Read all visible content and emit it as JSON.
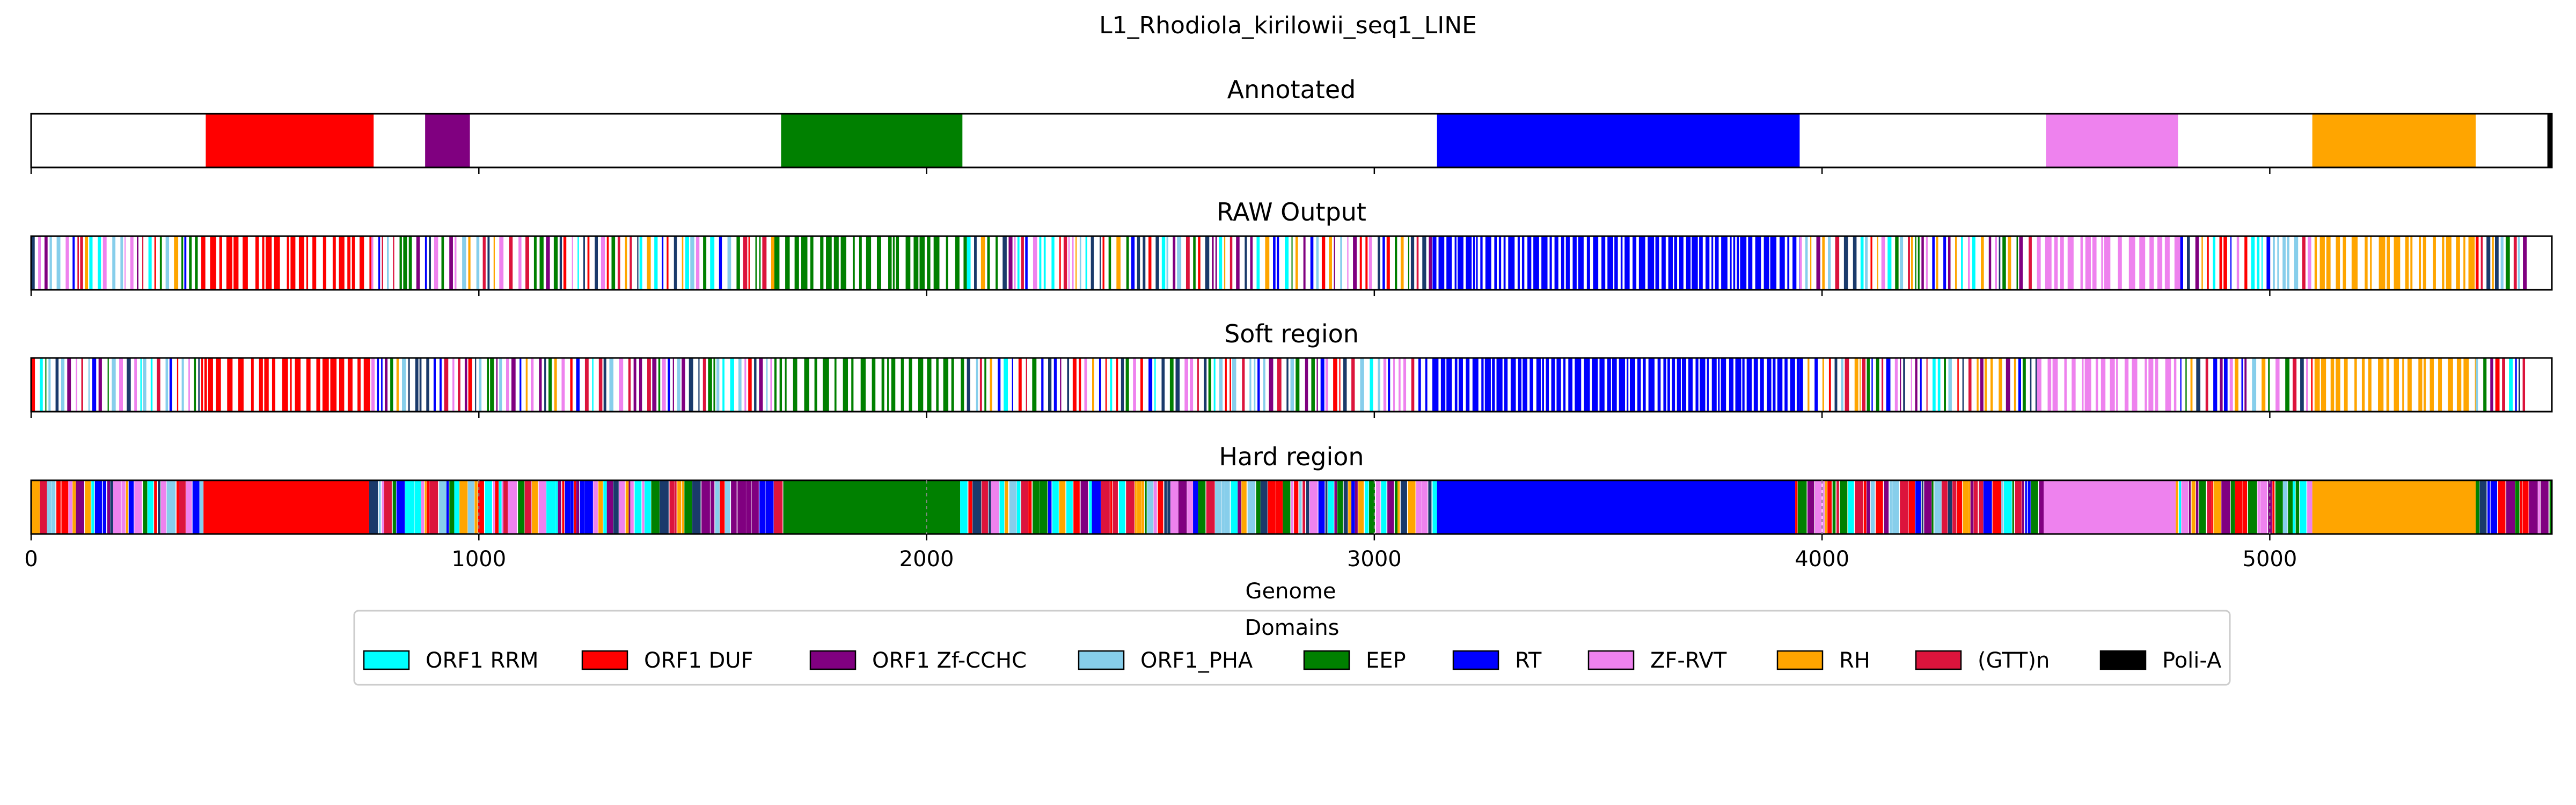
{
  "chart_data": {
    "type": "genome_track",
    "title": "L1_Rhodiola_kirilowii_seq1_LINE",
    "xlabel": "Genome",
    "xlim": [
      0,
      5630
    ],
    "xticks": [
      0,
      1000,
      2000,
      3000,
      4000,
      5000
    ],
    "xtick_labels": [
      "0",
      "1000",
      "2000",
      "3000",
      "4000",
      "5000"
    ],
    "domain_colors": {
      "ORF1 RRM": "#00ffff",
      "ORF1 DUF": "#ff0000",
      "ORF1 Zf-CCHC": "#800080",
      "ORF1_PHA": "#87ceeb",
      "EEP": "#008000",
      "RT": "#0000ff",
      "ZF-RVT": "#ee82ee",
      "RH": "#ffa500",
      "(GTT)n": "#dc143c",
      "Poli-A": "#000000"
    },
    "tracks": [
      {
        "title": "Annotated",
        "segments": [
          {
            "domain": "ORF1 DUF",
            "start": 390,
            "end": 765
          },
          {
            "domain": "ORF1 Zf-CCHC",
            "start": 880,
            "end": 980
          },
          {
            "domain": "EEP",
            "start": 1675,
            "end": 2080
          },
          {
            "domain": "RT",
            "start": 3140,
            "end": 3950
          },
          {
            "domain": "ZF-RVT",
            "start": 4500,
            "end": 4795
          },
          {
            "domain": "RH",
            "start": 5095,
            "end": 5460
          },
          {
            "domain": "Poli-A",
            "start": 5620,
            "end": 5630
          }
        ]
      },
      {
        "title": "RAW Output",
        "segments": [
          {
            "domain": "mixed",
            "start": 0,
            "end": 380
          },
          {
            "domain": "ORF1 DUF",
            "start": 380,
            "end": 760
          },
          {
            "domain": "mixed",
            "start": 760,
            "end": 1660
          },
          {
            "domain": "EEP",
            "start": 1660,
            "end": 2090
          },
          {
            "domain": "mixed",
            "start": 2090,
            "end": 3130
          },
          {
            "domain": "RT",
            "start": 3130,
            "end": 3950
          },
          {
            "domain": "mixed",
            "start": 3950,
            "end": 4480
          },
          {
            "domain": "ZF-RVT",
            "start": 4480,
            "end": 4800
          },
          {
            "domain": "mixed",
            "start": 4800,
            "end": 5100
          },
          {
            "domain": "RH",
            "start": 5100,
            "end": 5460
          },
          {
            "domain": "mixed",
            "start": 5460,
            "end": 5580
          }
        ]
      },
      {
        "title": "Soft region",
        "segments": [
          {
            "domain": "mixed",
            "start": 0,
            "end": 380
          },
          {
            "domain": "ORF1 DUF",
            "start": 380,
            "end": 760
          },
          {
            "domain": "mixed",
            "start": 760,
            "end": 1660
          },
          {
            "domain": "EEP",
            "start": 1660,
            "end": 2090
          },
          {
            "domain": "mixed",
            "start": 2090,
            "end": 3130
          },
          {
            "domain": "RT",
            "start": 3130,
            "end": 3950
          },
          {
            "domain": "mixed",
            "start": 3950,
            "end": 4480
          },
          {
            "domain": "ZF-RVT",
            "start": 4480,
            "end": 4800
          },
          {
            "domain": "mixed",
            "start": 4800,
            "end": 5100
          },
          {
            "domain": "RH",
            "start": 5100,
            "end": 5460
          },
          {
            "domain": "mixed",
            "start": 5460,
            "end": 5580
          }
        ]
      },
      {
        "title": "Hard region",
        "segments": [
          {
            "domain": "mixed",
            "start": 0,
            "end": 385
          },
          {
            "domain": "ORF1 DUF",
            "start": 385,
            "end": 755
          },
          {
            "domain": "mixed",
            "start": 755,
            "end": 1680
          },
          {
            "domain": "EEP",
            "start": 1680,
            "end": 2075
          },
          {
            "domain": "mixed",
            "start": 2075,
            "end": 3140
          },
          {
            "domain": "RT",
            "start": 3140,
            "end": 3940
          },
          {
            "domain": "mixed",
            "start": 3940,
            "end": 4495
          },
          {
            "domain": "ZF-RVT",
            "start": 4495,
            "end": 4790
          },
          {
            "domain": "mixed",
            "start": 4790,
            "end": 5095
          },
          {
            "domain": "RH",
            "start": 5095,
            "end": 5460
          },
          {
            "domain": "mixed",
            "start": 5460,
            "end": 5630
          }
        ]
      }
    ],
    "legend": {
      "title": "Domains",
      "placement": "bottom-center",
      "entries": [
        "ORF1 RRM",
        "ORF1 DUF",
        "ORF1 Zf-CCHC",
        "ORF1_PHA",
        "EEP",
        "RT",
        "ZF-RVT",
        "RH",
        "(GTT)n",
        "Poli-A"
      ]
    }
  }
}
